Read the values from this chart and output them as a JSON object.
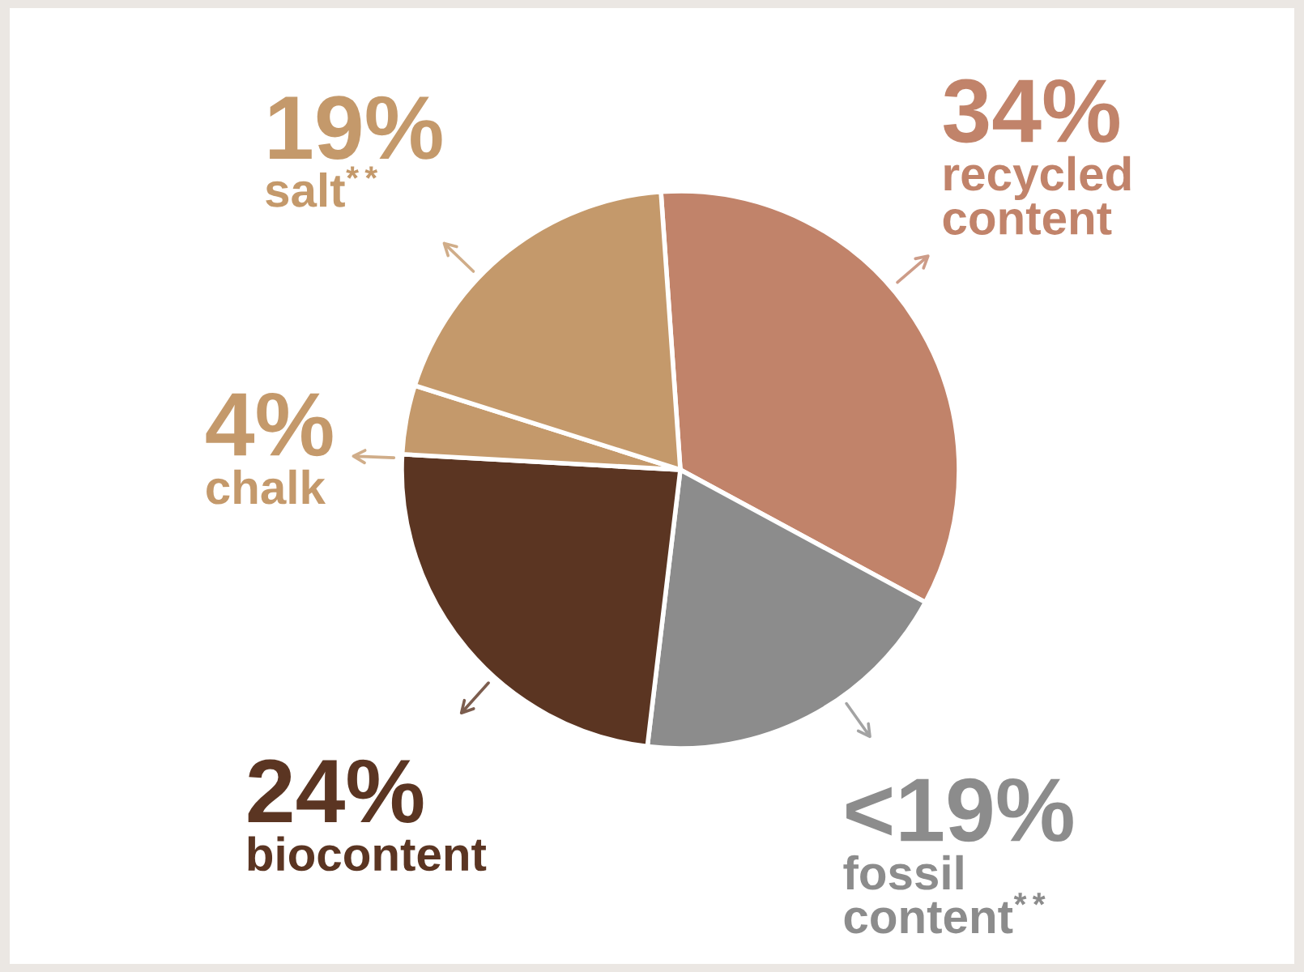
{
  "chart_data": {
    "type": "pie",
    "categories": [
      "recycled\ncontent",
      "fossil\ncontent$^{**}$",
      "biocontent",
      "chalk",
      "salt$^{**}$"
    ],
    "values": [
      34,
      19,
      24,
      4,
      19
    ],
    "value_labels": [
      "34%",
      "<19%",
      "24%",
      "4%",
      "19%"
    ],
    "colors": [
      "#c1836a",
      "#8c8c8c",
      "#5b3522",
      "#c4996b",
      "#c4996b"
    ]
  }
}
